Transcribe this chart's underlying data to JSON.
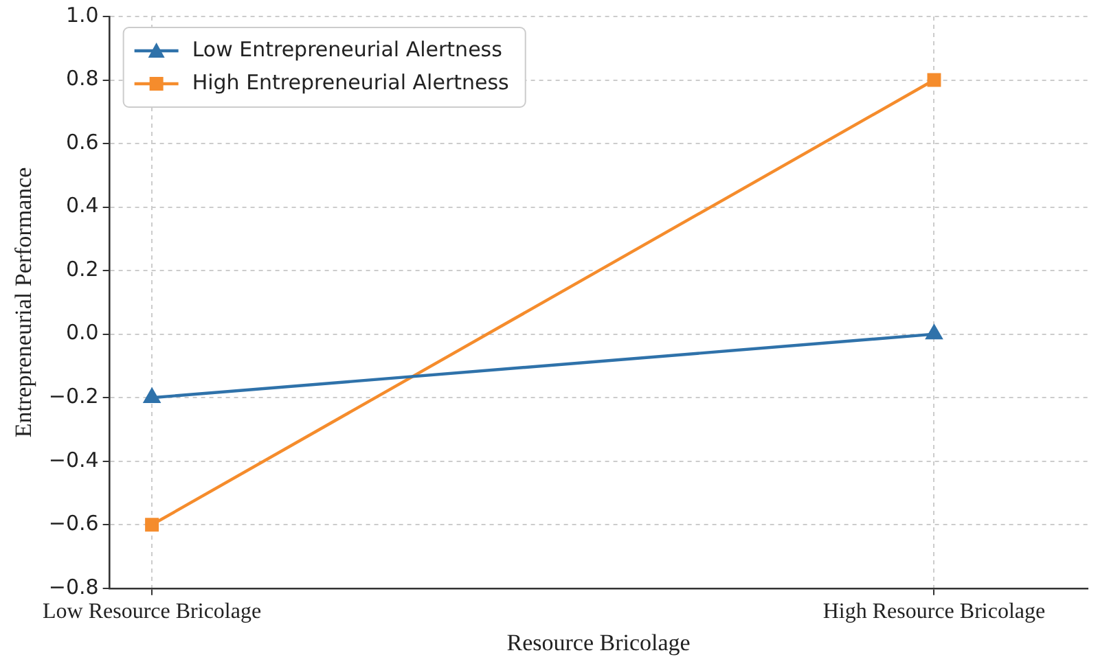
{
  "chart_data": {
    "type": "line",
    "xlabel": "Resource Bricolage",
    "ylabel": "Entrepreneurial Performance",
    "categories": [
      "Low Resource Bricolage",
      "High Resource Bricolage"
    ],
    "series": [
      {
        "name": "Low Entrepreneurial Alertness",
        "color": "#2f72aa",
        "values": [
          -0.2,
          0.0
        ],
        "marker": "triangle"
      },
      {
        "name": "High Entrepreneurial Alertness",
        "color": "#f58c2c",
        "values": [
          -0.6,
          0.8
        ],
        "marker": "square"
      }
    ],
    "ylim": [
      -0.8,
      1.0
    ],
    "yticks": [
      {
        "value": -0.8,
        "label": "−0.8"
      },
      {
        "value": -0.6,
        "label": "−0.6"
      },
      {
        "value": -0.4,
        "label": "−0.4"
      },
      {
        "value": -0.2,
        "label": "−0.2"
      },
      {
        "value": 0,
        "label": "0.0"
      },
      0.2,
      0.4,
      0.6,
      0.8,
      {
        "value": 1,
        "label": "1.0"
      }
    ],
    "grid": true,
    "legend": "top left",
    "line_style": "solid"
  }
}
